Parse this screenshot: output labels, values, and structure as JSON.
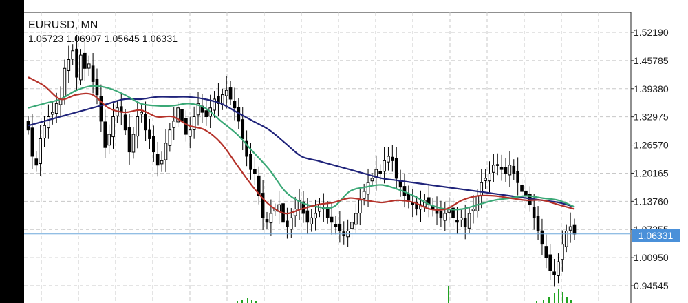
{
  "symbol": "EURUSD, MN",
  "ohlc": "1.05723 1.06907 1.05645 1.06331",
  "current_price": "1.06331",
  "chart_data": {
    "type": "candlestick",
    "symbol": "EURUSD",
    "timeframe": "MN",
    "ohlc_last": {
      "open": 1.05723,
      "high": 1.06907,
      "low": 1.05645,
      "close": 1.06331
    },
    "y_ticks": [
      "1.52190",
      "1.45785",
      "1.39380",
      "1.32975",
      "1.26570",
      "1.20165",
      "1.13760",
      "1.07355",
      "1.00950",
      "0.94545"
    ],
    "ylim": [
      0.935,
      1.535
    ],
    "grid": true,
    "closes": [
      1.3,
      1.24,
      1.22,
      1.28,
      1.31,
      1.33,
      1.34,
      1.36,
      1.37,
      1.44,
      1.46,
      1.48,
      1.42,
      1.47,
      1.44,
      1.45,
      1.41,
      1.38,
      1.32,
      1.26,
      1.29,
      1.33,
      1.35,
      1.34,
      1.3,
      1.25,
      1.29,
      1.33,
      1.34,
      1.3,
      1.28,
      1.25,
      1.22,
      1.23,
      1.27,
      1.3,
      1.32,
      1.35,
      1.32,
      1.29,
      1.3,
      1.33,
      1.36,
      1.34,
      1.33,
      1.35,
      1.37,
      1.36,
      1.38,
      1.39,
      1.37,
      1.35,
      1.32,
      1.28,
      1.24,
      1.21,
      1.2,
      1.15,
      1.1,
      1.09,
      1.11,
      1.12,
      1.13,
      1.09,
      1.08,
      1.1,
      1.12,
      1.14,
      1.11,
      1.09,
      1.1,
      1.11,
      1.13,
      1.12,
      1.1,
      1.09,
      1.08,
      1.07,
      1.06,
      1.07,
      1.09,
      1.11,
      1.14,
      1.16,
      1.18,
      1.19,
      1.21,
      1.2,
      1.23,
      1.24,
      1.23,
      1.19,
      1.17,
      1.15,
      1.14,
      1.13,
      1.12,
      1.13,
      1.14,
      1.13,
      1.12,
      1.11,
      1.1,
      1.11,
      1.12,
      1.1,
      1.09,
      1.1,
      1.08,
      1.11,
      1.12,
      1.15,
      1.18,
      1.19,
      1.2,
      1.22,
      1.22,
      1.21,
      1.2,
      1.22,
      1.2,
      1.18,
      1.16,
      1.15,
      1.13,
      1.1,
      1.07,
      1.04,
      1.01,
      0.98,
      0.97,
      1.0,
      1.04,
      1.07,
      1.08,
      1.063
    ],
    "series": [
      {
        "color": "#1f237a",
        "values": [
          1.31,
          1.32,
          1.33,
          1.34,
          1.35,
          1.36,
          1.37,
          1.37,
          1.375,
          1.375,
          1.375,
          1.37,
          1.36,
          1.34,
          1.32,
          1.3,
          1.27,
          1.24,
          1.23,
          1.22,
          1.21,
          1.2,
          1.19,
          1.185,
          1.18,
          1.175,
          1.17,
          1.165,
          1.16,
          1.155,
          1.15,
          1.145,
          1.14,
          1.135,
          1.125
        ]
      },
      {
        "color": "#3aa876",
        "values": [
          1.35,
          1.36,
          1.37,
          1.39,
          1.4,
          1.395,
          1.38,
          1.36,
          1.355,
          1.355,
          1.36,
          1.35,
          1.32,
          1.29,
          1.25,
          1.21,
          1.16,
          1.135,
          1.125,
          1.125,
          1.16,
          1.17,
          1.175,
          1.165,
          1.15,
          1.13,
          1.12,
          1.12,
          1.13,
          1.14,
          1.145,
          1.15,
          1.145,
          1.14,
          1.125
        ]
      },
      {
        "color": "#b5322a",
        "values": [
          1.42,
          1.4,
          1.37,
          1.38,
          1.38,
          1.35,
          1.34,
          1.345,
          1.33,
          1.33,
          1.31,
          1.3,
          1.27,
          1.22,
          1.17,
          1.13,
          1.11,
          1.12,
          1.13,
          1.135,
          1.145,
          1.14,
          1.135,
          1.14,
          1.135,
          1.12,
          1.12,
          1.14,
          1.15,
          1.15,
          1.145,
          1.14,
          1.14,
          1.13,
          1.12
        ]
      }
    ]
  }
}
